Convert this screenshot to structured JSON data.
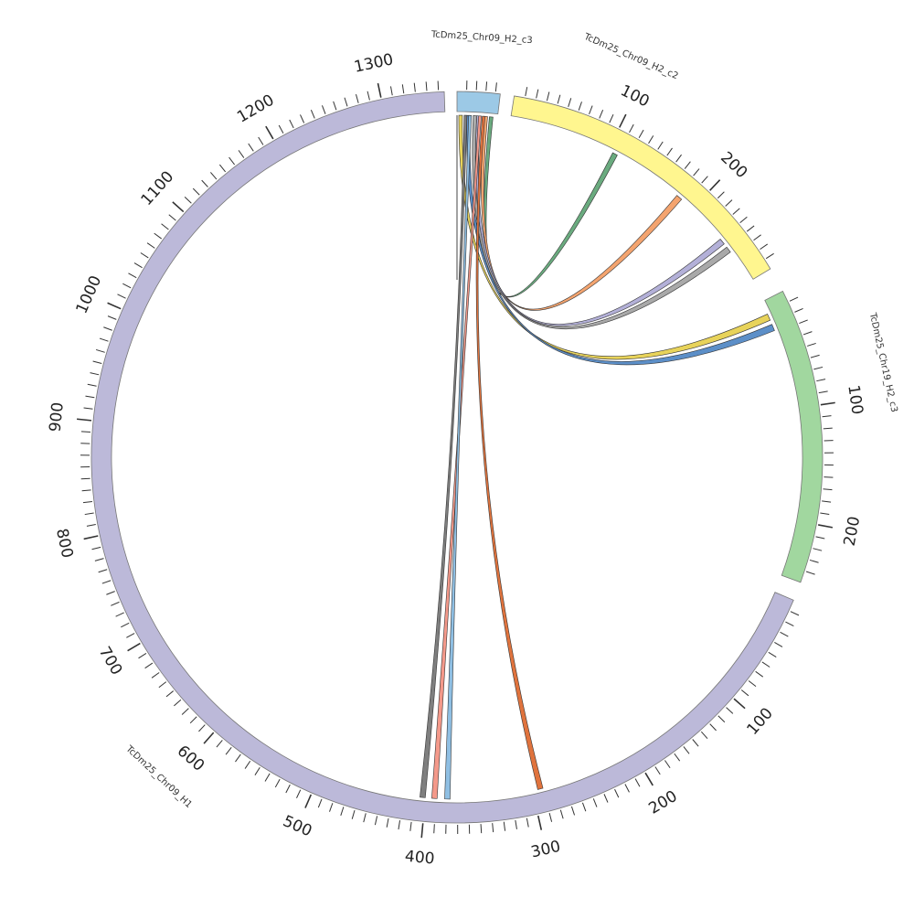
{
  "chart_data": {
    "type": "chord",
    "segments": [
      {
        "id": "H2_c3",
        "name": "TcDm25_Chr09_H2_c3",
        "length": 45,
        "color": "#9cc9e6",
        "tick_labels": []
      },
      {
        "id": "H2_c2",
        "name": "TcDm25_Chr09_H2_c2",
        "length": 290,
        "color": "#fff68f",
        "tick_labels": [
          "100",
          "200"
        ]
      },
      {
        "id": "Chr19",
        "name": "TcDm25_Chr19_H2_c3",
        "length": 250,
        "color": "#a1d79f",
        "tick_labels": [
          "100",
          "200"
        ]
      },
      {
        "id": "H1",
        "name": "TcDm25_Chr09_H1",
        "length": 1355,
        "color": "#bcb9d9",
        "tick_labels": [
          "100",
          "200",
          "300",
          "400",
          "500",
          "600",
          "700",
          "800",
          "900",
          "1000",
          "1100",
          "1200",
          "1300"
        ]
      }
    ],
    "links": [
      {
        "from": "H2_c3",
        "from_range": [
          36,
          40
        ],
        "to": "H2_c2",
        "to_range": [
          105,
          110
        ],
        "color": "#6aab7f"
      },
      {
        "from": "H2_c3",
        "from_range": [
          30,
          34
        ],
        "to": "H2_c2",
        "to_range": [
          180,
          186
        ],
        "color": "#f4a46f"
      },
      {
        "from": "H2_c3",
        "from_range": [
          22,
          26
        ],
        "to": "H2_c2",
        "to_range": [
          240,
          246
        ],
        "color": "#b3b0d8"
      },
      {
        "from": "H2_c3",
        "from_range": [
          18,
          22
        ],
        "to": "H2_c2",
        "to_range": [
          250,
          256
        ],
        "color": "#a9a9a9"
      },
      {
        "from": "H2_c3",
        "from_range": [
          2,
          6
        ],
        "to": "Chr19",
        "to_range": [
          12,
          18
        ],
        "color": "#e8d35a"
      },
      {
        "from": "H2_c3",
        "from_range": [
          11,
          15
        ],
        "to": "Chr19",
        "to_range": [
          22,
          28
        ],
        "color": "#5c8fc8"
      },
      {
        "from": "H2_c3",
        "from_range": [
          28,
          31
        ],
        "to": "H1",
        "to_range": [
          290,
          295
        ],
        "color": "#e0733d"
      },
      {
        "from": "H2_c3",
        "from_range": [
          8,
          11
        ],
        "to": "H1",
        "to_range": [
          400,
          405
        ],
        "color": "#7f7f7f"
      },
      {
        "from": "H2_c3",
        "from_range": [
          24,
          27
        ],
        "to": "H1",
        "to_range": [
          389,
          394
        ],
        "color": "#f4998a"
      },
      {
        "from": "H2_c3",
        "from_range": [
          13,
          16
        ],
        "to": "H1",
        "to_range": [
          377,
          382
        ],
        "color": "#8fbfe3"
      },
      {
        "from": "H2_c3",
        "from_range": [
          0,
          1
        ],
        "to": "H2_c3",
        "to_range": [
          0,
          1
        ],
        "color": "#444444"
      }
    ]
  }
}
